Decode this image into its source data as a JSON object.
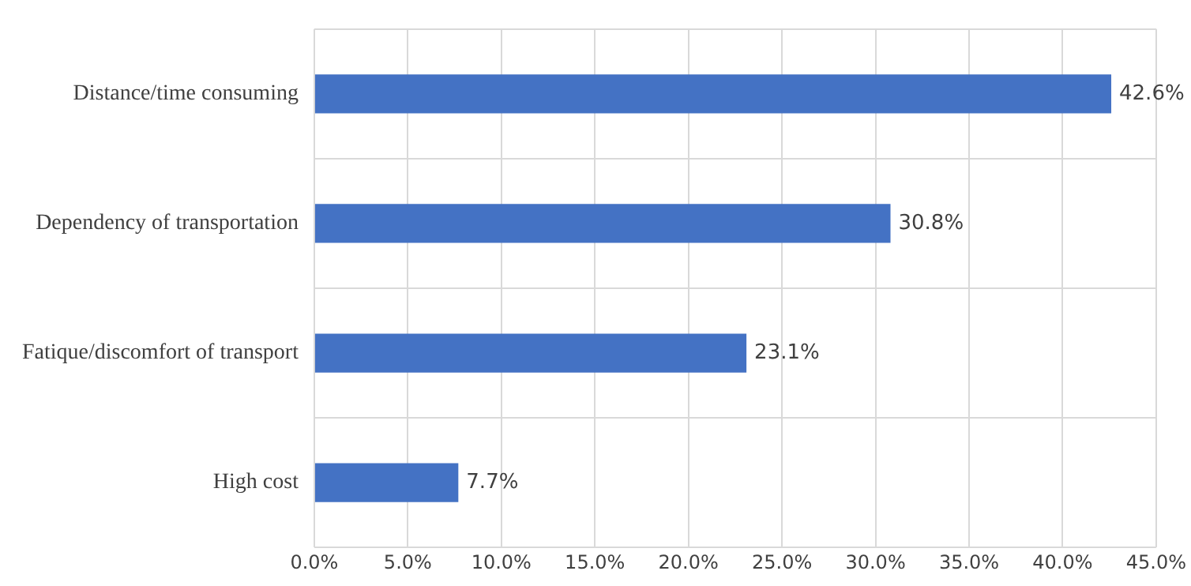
{
  "chart_data": {
    "type": "bar",
    "orientation": "horizontal",
    "categories": [
      "Distance/time consuming",
      "Dependency of transportation",
      "Fatique/discomfort of transport",
      "High cost"
    ],
    "values": [
      42.6,
      30.8,
      23.1,
      7.7
    ],
    "value_labels": [
      "42.6%",
      "30.8%",
      "23.1%",
      "7.7%"
    ],
    "color": "#4472c4",
    "xlim": [
      0,
      45
    ],
    "xticks": [
      {
        "value": 0,
        "label": "0.0%"
      },
      {
        "value": 5,
        "label": "5.0%"
      },
      {
        "value": 10,
        "label": "10.0%"
      },
      {
        "value": 15,
        "label": "15.0%"
      },
      {
        "value": 20,
        "label": "20.0%"
      },
      {
        "value": 25,
        "label": "25.0%"
      },
      {
        "value": 30,
        "label": "30.0%"
      },
      {
        "value": 35,
        "label": "35.0%"
      },
      {
        "value": 40,
        "label": "40.0%"
      },
      {
        "value": 45,
        "label": "45.0%"
      }
    ],
    "grid": true
  }
}
